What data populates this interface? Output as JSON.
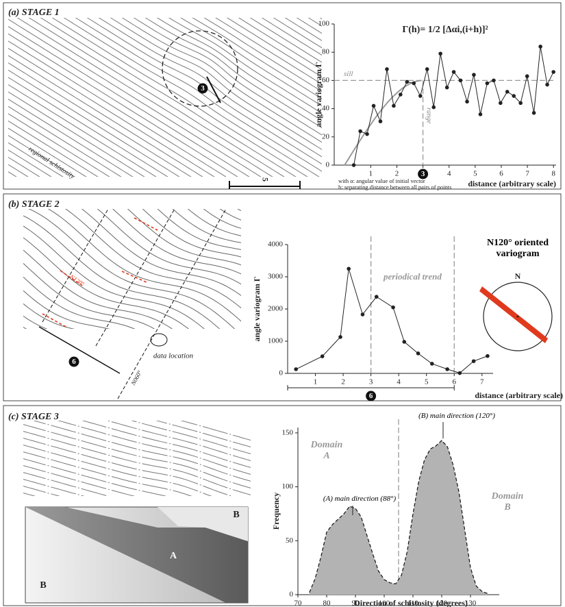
{
  "figure": {
    "panels": [
      {
        "title": "(a) STAGE 1",
        "labels": [
          "regional schistosity",
          "3",
          "5"
        ]
      },
      {
        "title": "(b) STAGE 2",
        "labels": [
          "N120°",
          "N060°",
          "data location",
          "6"
        ]
      },
      {
        "title": "(c) STAGE 3",
        "labels": [
          "A",
          "B",
          "B"
        ]
      }
    ]
  },
  "chart_data": [
    {
      "type": "line",
      "title": "Γ(h)= 1/2 [Δαi,(i+h)]²",
      "x": [
        0.35,
        0.6,
        0.86,
        1.11,
        1.37,
        1.62,
        1.88,
        2.14,
        2.39,
        2.65,
        2.9,
        3.16,
        3.41,
        3.67,
        3.92,
        4.18,
        4.44,
        4.69,
        4.95,
        5.2,
        5.46,
        5.71,
        5.97,
        6.23,
        6.48,
        6.74,
        6.99,
        7.25,
        7.5,
        7.76,
        8.0
      ],
      "values": [
        0,
        24,
        22,
        42,
        31,
        68,
        42,
        50,
        59,
        58,
        49,
        68,
        41,
        79,
        55,
        66,
        60,
        45,
        64,
        36,
        58,
        60,
        44,
        52,
        49,
        44,
        63,
        37,
        84,
        57,
        66
      ],
      "color": "#222",
      "model_color": "#999",
      "xlim": [
        -0.4,
        8.1
      ],
      "ylim": [
        0,
        100
      ],
      "xticks": [
        1,
        2,
        3,
        4,
        5,
        6,
        7,
        8
      ],
      "yticks": [
        0,
        20,
        40,
        60,
        80,
        100
      ],
      "xlabel": "distance (arbitrary scale)",
      "ylabel": "angle variogram Γ",
      "reference_lines": [
        {
          "axis": "y",
          "value": 60,
          "label": "sill"
        },
        {
          "axis": "x",
          "value": 3,
          "label": "range"
        }
      ],
      "notes": [
        "with α: angular value of initial vector",
        "h: separating distance between all pairs of points"
      ]
    },
    {
      "type": "line",
      "x": [
        0.3,
        1.25,
        1.9,
        2.2,
        2.7,
        3.2,
        3.8,
        4.2,
        4.7,
        5.2,
        5.75,
        6.2,
        6.7,
        7.2
      ],
      "values": [
        130,
        530,
        1130,
        3250,
        1830,
        2380,
        2050,
        980,
        620,
        300,
        130,
        10,
        380,
        540
      ],
      "color": "#222",
      "xlim": [
        0,
        7.4
      ],
      "ylim": [
        0,
        4000
      ],
      "xticks": [
        1,
        2,
        3,
        4,
        5,
        6,
        7
      ],
      "yticks": [
        0,
        1000,
        2000,
        3000,
        4000
      ],
      "xlabel": "distance (arbitrary scale)",
      "ylabel": "angle variogram Γ",
      "reference_lines": [
        {
          "axis": "x",
          "value": 3
        },
        {
          "axis": "x",
          "value": 6
        }
      ],
      "annotation": "periodical trend",
      "scale_bar": {
        "end": 6,
        "label": "6"
      },
      "compass_title": "N120° oriented variogram",
      "compass_north": "N"
    },
    {
      "type": "area",
      "x": [
        74,
        76,
        78,
        80,
        82,
        84,
        86,
        88,
        90,
        92,
        94,
        96,
        98,
        100,
        102,
        104,
        106,
        108,
        110,
        112,
        114,
        116,
        118,
        120,
        122,
        124,
        126,
        128,
        130,
        132,
        134,
        136
      ],
      "values": [
        2,
        15,
        35,
        58,
        65,
        70,
        75,
        82,
        80,
        72,
        55,
        38,
        22,
        14,
        11,
        10,
        18,
        40,
        75,
        105,
        125,
        135,
        138,
        143,
        137,
        120,
        95,
        60,
        25,
        8,
        3,
        1
      ],
      "color": "#b3b3b3",
      "xlim": [
        70,
        140
      ],
      "ylim": [
        0,
        155
      ],
      "xticks": [
        70,
        80,
        90,
        100,
        110,
        120,
        130
      ],
      "yticks": [
        0,
        50,
        100,
        150
      ],
      "xlabel": "Direction of schistosity (degrees)",
      "ylabel": "Frequency",
      "reference_lines": [
        {
          "axis": "x",
          "value": 105
        }
      ],
      "annotations": [
        "Domain A",
        "Domain B",
        "(A) main direction (88°)",
        "(B) main direction (120°)"
      ]
    }
  ]
}
